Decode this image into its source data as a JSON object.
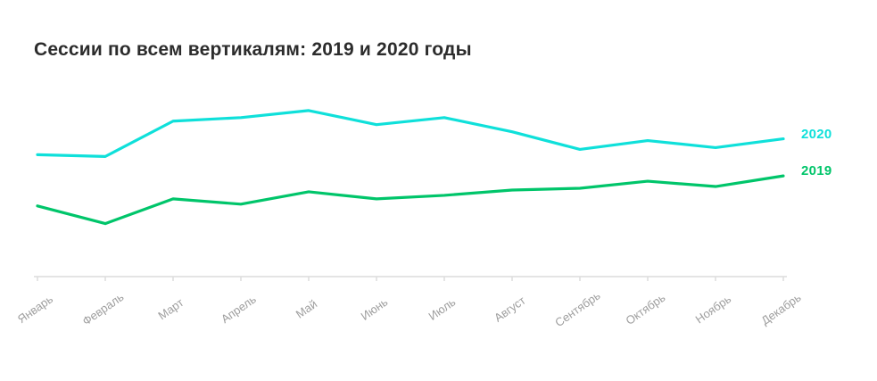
{
  "title": "Сессии по всем вертикалям: 2019 и 2020 годы",
  "chart_data": {
    "type": "line",
    "title": "Сессии по всем вертикалям: 2019 и 2020 годы",
    "categories": [
      "Январь",
      "Февраль",
      "Март",
      "Апрель",
      "Май",
      "Июнь",
      "Июль",
      "Август",
      "Сентябрь",
      "Октябрь",
      "Ноябрь",
      "Декабрь"
    ],
    "series": [
      {
        "name": "2020",
        "color": "#0fe0da",
        "values": [
          69,
          68,
          88,
          90,
          94,
          86,
          90,
          82,
          72,
          77,
          73,
          78
        ]
      },
      {
        "name": "2019",
        "color": "#00c56a",
        "values": [
          40,
          30,
          44,
          41,
          48,
          44,
          46,
          49,
          50,
          54,
          51,
          57
        ]
      }
    ],
    "xlabel": "",
    "ylabel": "",
    "ylim": [
      0,
      100
    ],
    "y_axis_shown": false,
    "grid": false,
    "legend_position": "right-of-line-ends"
  },
  "axis": {
    "line_color": "#dcdcdc",
    "label_color": "#9e9e9e"
  },
  "colors": {
    "background": "#ffffff",
    "title_text": "#2c2c2c"
  }
}
